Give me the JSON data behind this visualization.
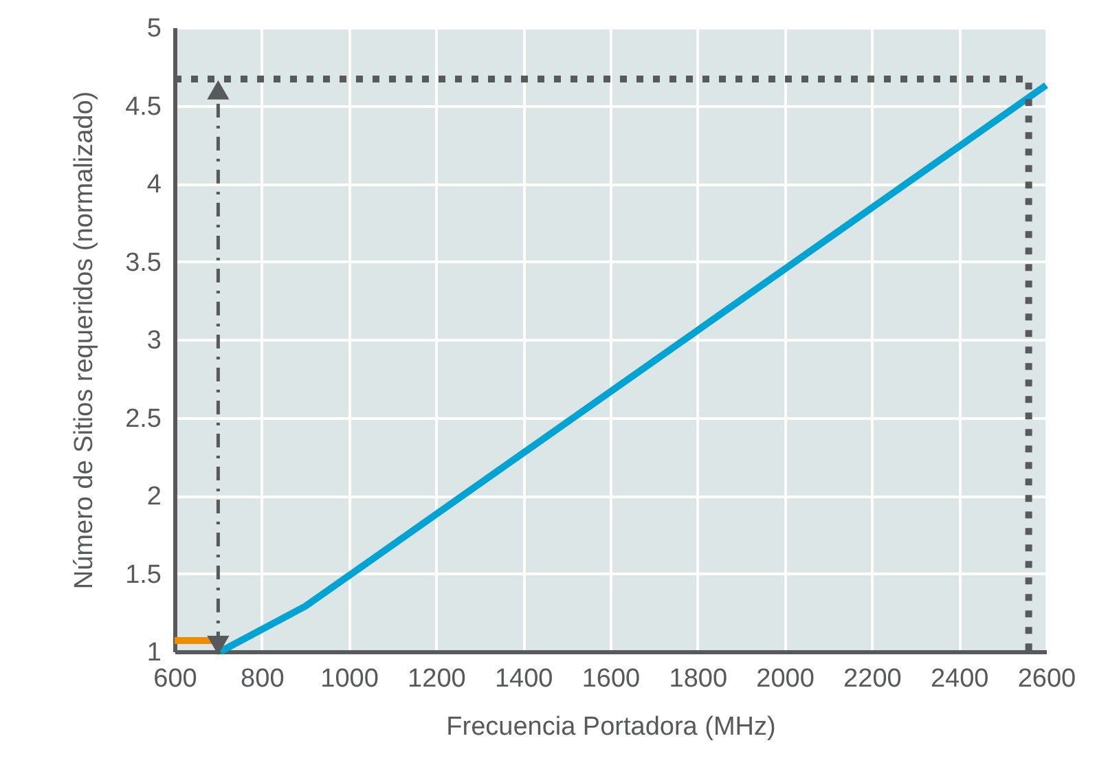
{
  "chart_data": {
    "type": "line",
    "xlabel": "Frecuencia Portadora (MHz)",
    "ylabel": "Número de Sitios requeridos (normalizado)",
    "xlim": [
      600,
      2600
    ],
    "ylim": [
      1,
      5
    ],
    "xticks": [
      600,
      800,
      1000,
      1200,
      1400,
      1600,
      1800,
      2000,
      2200,
      2400,
      2600
    ],
    "yticks": [
      1,
      1.5,
      2,
      2.5,
      3,
      3.5,
      4,
      4.5,
      5
    ],
    "grid": true,
    "series": [
      {
        "color": "#00a3d1",
        "x": [
          705,
          900,
          2600
        ],
        "values": [
          1.0,
          1.29,
          4.63
        ]
      },
      {
        "color": "#f08c00",
        "x": [
          600,
          705,
          705
        ],
        "values": [
          1.07,
          1.07,
          1.03
        ]
      },
      {
        "color": "#58595b",
        "line_style": "dotted",
        "x": [
          600,
          2560,
          2560
        ],
        "values": [
          4.67,
          4.67,
          1
        ]
      },
      {
        "color": "#58595b",
        "line_style": "dashed",
        "marker": "triangle",
        "x": [
          700,
          700
        ],
        "values": [
          1.04,
          4.6
        ]
      }
    ]
  }
}
